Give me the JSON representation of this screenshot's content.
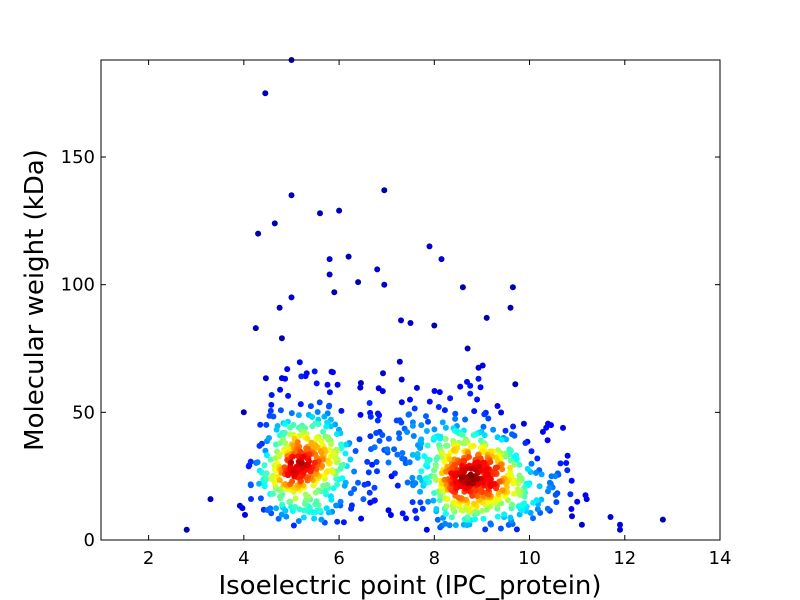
{
  "chart_data": {
    "type": "scatter",
    "title": "",
    "xlabel": "Isoelectric point (IPC_protein)",
    "ylabel": "Molecular weight (kDa)",
    "xlim": [
      1,
      14
    ],
    "ylim": [
      0,
      188
    ],
    "xticks": [
      2,
      4,
      6,
      8,
      10,
      12,
      14
    ],
    "yticks": [
      0,
      50,
      100,
      150
    ],
    "grid": false,
    "legend": "none",
    "colormap": "jet (point density)",
    "colors": {
      "low": "#00008f",
      "mid": "#00ffff",
      "high": "#800000",
      "axes": "#000000",
      "background": "#ffffff"
    },
    "outliers": [
      {
        "x": 2.8,
        "y": 4
      },
      {
        "x": 3.3,
        "y": 16
      },
      {
        "x": 4.0,
        "y": 50
      },
      {
        "x": 4.25,
        "y": 83
      },
      {
        "x": 4.3,
        "y": 120
      },
      {
        "x": 4.45,
        "y": 175
      },
      {
        "x": 4.65,
        "y": 124
      },
      {
        "x": 4.75,
        "y": 91
      },
      {
        "x": 4.8,
        "y": 79
      },
      {
        "x": 5.0,
        "y": 95
      },
      {
        "x": 5.0,
        "y": 135
      },
      {
        "x": 5.0,
        "y": 188
      },
      {
        "x": 5.6,
        "y": 128
      },
      {
        "x": 5.8,
        "y": 110
      },
      {
        "x": 5.8,
        "y": 104
      },
      {
        "x": 5.9,
        "y": 97
      },
      {
        "x": 6.0,
        "y": 129
      },
      {
        "x": 6.2,
        "y": 111
      },
      {
        "x": 6.4,
        "y": 101
      },
      {
        "x": 6.8,
        "y": 106
      },
      {
        "x": 6.95,
        "y": 100
      },
      {
        "x": 6.95,
        "y": 137
      },
      {
        "x": 7.3,
        "y": 86
      },
      {
        "x": 7.5,
        "y": 85
      },
      {
        "x": 7.9,
        "y": 115
      },
      {
        "x": 8.0,
        "y": 84
      },
      {
        "x": 8.15,
        "y": 110
      },
      {
        "x": 8.6,
        "y": 99
      },
      {
        "x": 8.7,
        "y": 75
      },
      {
        "x": 9.1,
        "y": 87
      },
      {
        "x": 9.6,
        "y": 91
      },
      {
        "x": 9.65,
        "y": 99
      },
      {
        "x": 9.7,
        "y": 61
      },
      {
        "x": 10.35,
        "y": 44
      },
      {
        "x": 10.45,
        "y": 45
      },
      {
        "x": 10.8,
        "y": 33
      },
      {
        "x": 10.65,
        "y": 30
      },
      {
        "x": 11.0,
        "y": 15
      },
      {
        "x": 11.2,
        "y": 16
      },
      {
        "x": 11.1,
        "y": 6
      },
      {
        "x": 11.7,
        "y": 9
      },
      {
        "x": 11.9,
        "y": 6
      },
      {
        "x": 11.9,
        "y": 4
      },
      {
        "x": 12.8,
        "y": 8
      }
    ],
    "clusters": [
      {
        "center_x": 5.3,
        "center_y": 26,
        "spread_x": 0.55,
        "spread_y": 11,
        "count": 420,
        "x_range": [
          3.9,
          6.8
        ],
        "y_range": [
          3,
          75
        ]
      },
      {
        "center_x": 8.8,
        "center_y": 22,
        "spread_x": 0.6,
        "spread_y": 10,
        "count": 480,
        "x_range": [
          7.6,
          10.4
        ],
        "y_range": [
          3,
          70
        ]
      },
      {
        "center_x": 7.2,
        "center_y": 30,
        "spread_x": 0.7,
        "spread_y": 14,
        "count": 90,
        "x_range": [
          6.3,
          8.1
        ],
        "y_range": [
          4,
          70
        ]
      },
      {
        "center_x": 10.2,
        "center_y": 15,
        "spread_x": 0.5,
        "spread_y": 8,
        "count": 50,
        "x_range": [
          9.6,
          11.3
        ],
        "y_range": [
          3,
          45
        ]
      }
    ]
  }
}
